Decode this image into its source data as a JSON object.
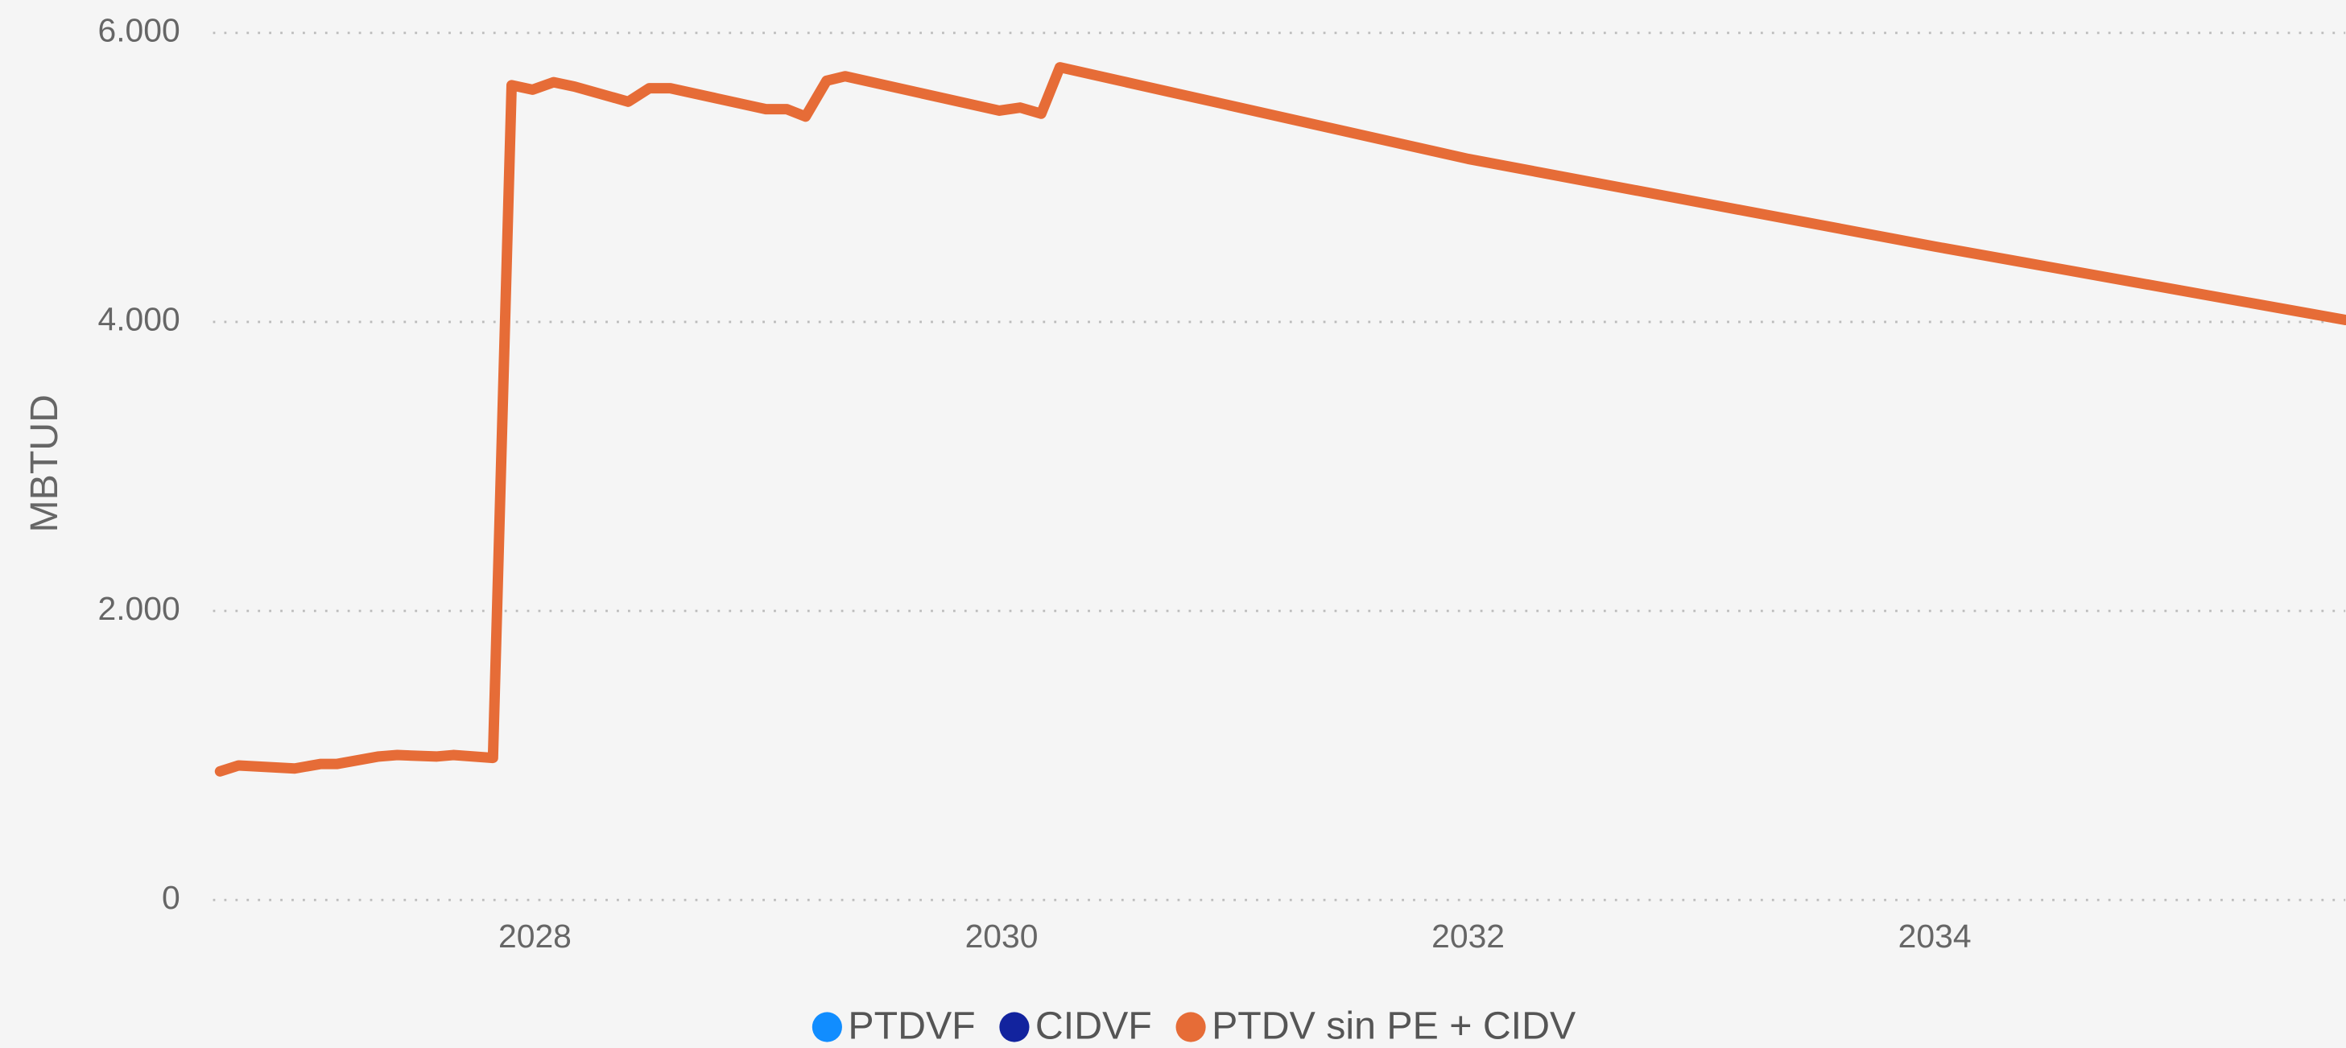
{
  "chart_data": {
    "type": "line",
    "y_axis_label": "MBTUD",
    "x": [
      2026.65,
      2026.73,
      2026.97,
      2027.08,
      2027.15,
      2027.33,
      2027.41,
      2027.58,
      2027.65,
      2027.82,
      2027.9,
      2027.99,
      2028.08,
      2028.17,
      2028.4,
      2028.49,
      2028.58,
      2028.99,
      2029.08,
      2029.16,
      2029.25,
      2029.33,
      2029.99,
      2030.08,
      2030.17,
      2030.25,
      2032.0,
      2034.0,
      2035.76
    ],
    "series": [
      {
        "name": "PTDVF",
        "color": "#118DFF",
        "values": [
          null,
          null,
          null,
          null,
          null,
          null,
          null,
          null,
          null,
          null,
          null,
          null,
          null,
          null,
          null,
          null,
          null,
          null,
          null,
          null,
          null,
          null,
          null,
          null,
          null,
          null,
          null,
          null,
          null
        ]
      },
      {
        "name": "CIDVF",
        "color": "#12239E",
        "values": [
          null,
          null,
          null,
          null,
          null,
          null,
          null,
          null,
          null,
          null,
          null,
          null,
          null,
          null,
          null,
          null,
          null,
          null,
          null,
          null,
          null,
          null,
          null,
          null,
          null,
          null,
          null,
          null,
          null
        ]
      },
      {
        "name": "PTDV sin PE + CIDV",
        "color": "#E66C37",
        "values": [
          890,
          931,
          910,
          941,
          941,
          993,
          1003,
          993,
          1003,
          983,
          5638,
          5607,
          5659,
          5628,
          5524,
          5617,
          5617,
          5472,
          5472,
          5421,
          5669,
          5700,
          5462,
          5483,
          5441,
          5762,
          5128,
          4522,
          4014
        ]
      }
    ],
    "xlim": [
      2026.62,
      2035.76
    ],
    "xticks": [
      2028,
      2030,
      2032,
      2034
    ],
    "ylim": [
      0,
      6000
    ],
    "yticks": [
      0,
      {
        "value": 2000,
        "label": "2.000"
      },
      {
        "value": 4000,
        "label": "4.000"
      },
      {
        "value": 6000,
        "label": "6.000"
      }
    ],
    "grid": true,
    "legend": "bottom"
  }
}
